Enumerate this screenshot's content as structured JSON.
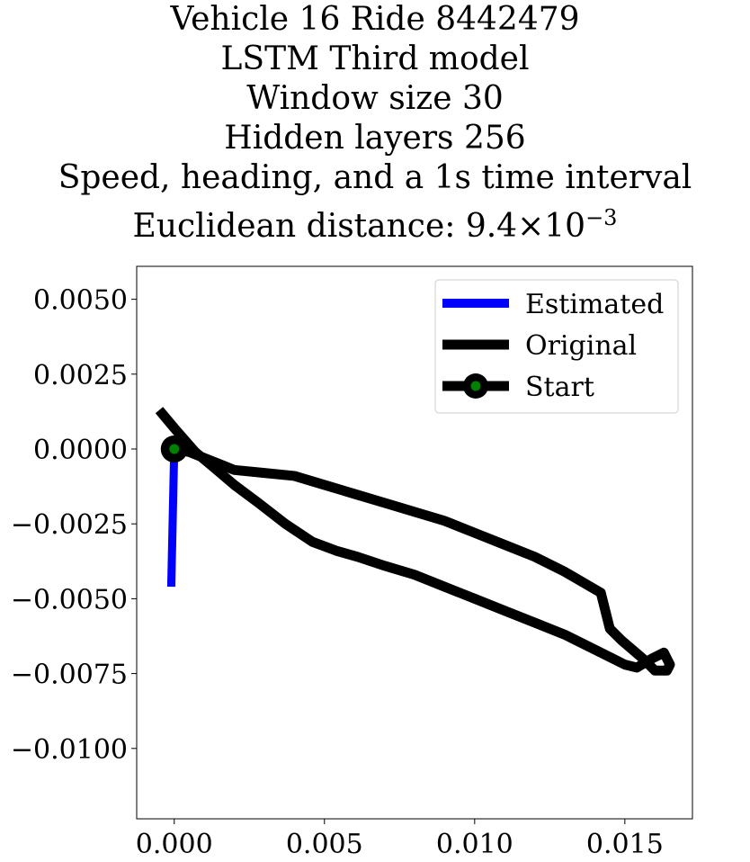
{
  "chart_data": {
    "type": "line",
    "title_lines": [
      "Vehicle 16 Ride 8442479",
      "LSTM Third model",
      "Window size 30",
      "Hidden layers 256",
      "Speed, heading, and a 1s time interval",
      "Euclidean distance: 9.4×10−3"
    ],
    "xlabel": "",
    "ylabel": "",
    "xlim": [
      -0.00125,
      0.01725
    ],
    "ylim": [
      -0.01235,
      0.0061
    ],
    "x_ticks": [
      0.0,
      0.005,
      0.01,
      0.015
    ],
    "x_tick_labels": [
      "0.000",
      "0.005",
      "0.010",
      "0.015"
    ],
    "y_ticks": [
      0.005,
      0.0025,
      0.0,
      -0.0025,
      -0.005,
      -0.0075,
      -0.01
    ],
    "y_tick_labels": [
      "0.0050",
      "0.0025",
      "0.0000",
      "−0.0025",
      "−0.0050",
      "−0.0075",
      "−0.0100"
    ],
    "grid": false,
    "legend_position": "top-right",
    "series": [
      {
        "name": "Estimated",
        "color": "#0000ff",
        "x": [
          0.0,
          -0.0001
        ],
        "y": [
          0.0,
          -0.0046
        ]
      },
      {
        "name": "Original",
        "color": "#000000",
        "x": [
          -0.0005,
          0.0,
          0.0007,
          0.0013,
          0.002,
          0.0028,
          0.0037,
          0.0046,
          0.0054,
          0.0061,
          0.007,
          0.008,
          0.009,
          0.01,
          0.011,
          0.012,
          0.013,
          0.014,
          0.0146,
          0.015,
          0.0154,
          0.0159,
          0.0163,
          0.0165,
          0.0164,
          0.016,
          0.0156,
          0.0149,
          0.0145,
          0.0142,
          0.013,
          0.012,
          0.011,
          0.01,
          0.009,
          0.008,
          0.007,
          0.006,
          0.005,
          0.004,
          0.003,
          0.002,
          0.0015,
          0.001,
          0.0005,
          0.0
        ],
        "y": [
          0.0013,
          0.0007,
          -0.0001,
          -0.0006,
          -0.0012,
          -0.0018,
          -0.0025,
          -0.0031,
          -0.0034,
          -0.0036,
          -0.0039,
          -0.0042,
          -0.0046,
          -0.005,
          -0.0054,
          -0.0058,
          -0.0062,
          -0.0067,
          -0.007,
          -0.0072,
          -0.0073,
          -0.007,
          -0.0068,
          -0.0072,
          -0.0074,
          -0.0074,
          -0.007,
          -0.0064,
          -0.006,
          -0.0048,
          -0.0041,
          -0.0036,
          -0.0032,
          -0.0028,
          -0.0024,
          -0.0021,
          -0.0018,
          -0.0015,
          -0.0012,
          -0.0009,
          -0.0008,
          -0.0007,
          -0.0005,
          -0.0003,
          -0.0001,
          0.0
        ]
      },
      {
        "name": "Start",
        "color": "#000000",
        "marker_color": "#008000",
        "x": [
          0.0
        ],
        "y": [
          0.0
        ]
      }
    ]
  }
}
